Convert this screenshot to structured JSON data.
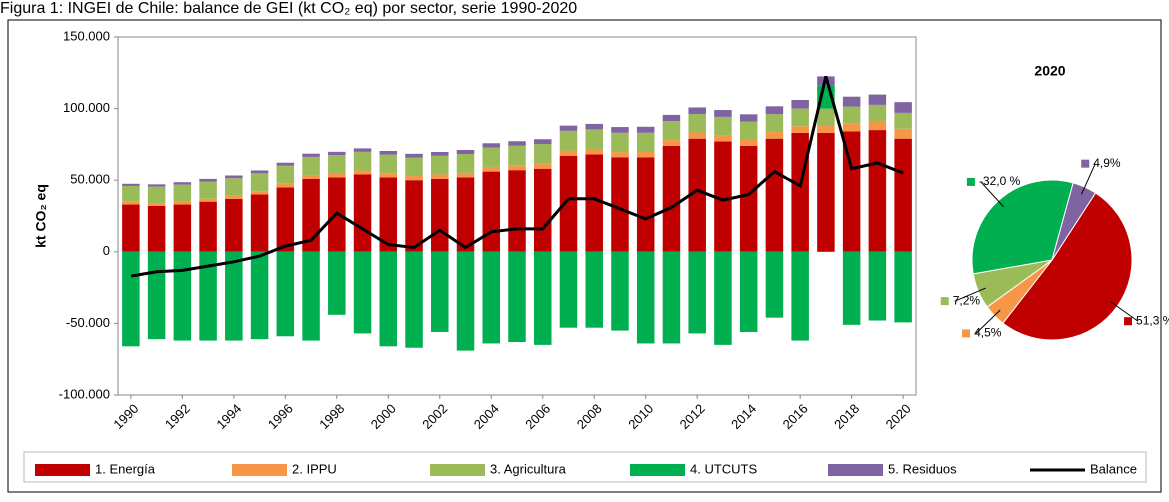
{
  "chart_data": [
    {
      "type": "bar",
      "title": "Figura 1: INGEI de Chile: balance de GEI (kt CO₂ eq) por sector, serie 1990-2020",
      "y_label": "kt CO₂ eq",
      "stacked": true,
      "x": [
        1990,
        1991,
        1992,
        1993,
        1994,
        1995,
        1996,
        1997,
        1998,
        1999,
        2000,
        2001,
        2002,
        2003,
        2004,
        2005,
        2006,
        2007,
        2008,
        2009,
        2010,
        2011,
        2012,
        2013,
        2014,
        2015,
        2016,
        2017,
        2018,
        2019,
        2020
      ],
      "xlim": [
        1989.5,
        2020.5
      ],
      "xticks": [
        1990,
        1992,
        1994,
        1996,
        1998,
        2000,
        2002,
        2004,
        2006,
        2008,
        2010,
        2012,
        2014,
        2016,
        2018,
        2020
      ],
      "ylim": [
        -100000,
        150000
      ],
      "yticks": [
        {
          "value": -100000,
          "label": "-100.000"
        },
        {
          "value": -50000,
          "label": "-50.000"
        },
        0,
        {
          "value": 50000,
          "label": "50.000"
        },
        {
          "value": 100000,
          "label": "100.000"
        },
        {
          "value": 150000,
          "label": "150.000"
        }
      ],
      "grid": false,
      "series": [
        {
          "name": "1. Energía",
          "color": "#c00000",
          "type": "bar",
          "values": [
            33000,
            32000,
            33000,
            35000,
            37000,
            40000,
            45000,
            51000,
            52000,
            54000,
            52000,
            50000,
            51000,
            52000,
            56000,
            57000,
            58000,
            67000,
            68000,
            66000,
            66000,
            74000,
            79000,
            77000,
            74000,
            79000,
            83000,
            83000,
            84000,
            85000,
            79000
          ]
        },
        {
          "name": "2. IPPU",
          "color": "#f79646",
          "type": "bar",
          "values": [
            2000,
            2000,
            2100,
            2100,
            2200,
            2300,
            2500,
            2600,
            2700,
            2800,
            2900,
            2900,
            3000,
            3100,
            3300,
            3400,
            3500,
            3700,
            3800,
            3600,
            3700,
            4000,
            4300,
            4500,
            4400,
            4600,
            4700,
            4800,
            5500,
            6000,
            6900
          ]
        },
        {
          "name": "3. Agricultura",
          "color": "#9bbb59",
          "type": "bar",
          "values": [
            11000,
            11500,
            11800,
            12000,
            12200,
            12500,
            12600,
            12700,
            12800,
            13000,
            13000,
            12900,
            13000,
            13200,
            13500,
            13600,
            13700,
            13800,
            13700,
            13500,
            13400,
            13200,
            12900,
            12700,
            12600,
            12500,
            12300,
            12200,
            11900,
            11600,
            11100
          ]
        },
        {
          "name": "4. UTCUTS",
          "color": "#00b050",
          "type": "bar",
          "values": [
            -66000,
            -61000,
            -62000,
            -62000,
            -62000,
            -61000,
            -59000,
            -62000,
            -44000,
            -57000,
            -66000,
            -67000,
            -56000,
            -69000,
            -64000,
            -63000,
            -65000,
            -53000,
            -53000,
            -55000,
            -64000,
            -64000,
            -57000,
            -65000,
            -56000,
            -46000,
            -62000,
            16000,
            -51000,
            -48000,
            -49300
          ]
        },
        {
          "name": "5. Residuos",
          "color": "#8064a2",
          "type": "bar",
          "values": [
            1500,
            1600,
            1700,
            1800,
            1900,
            2000,
            2100,
            2200,
            2300,
            2400,
            2500,
            2600,
            2700,
            2800,
            3000,
            3200,
            3400,
            3600,
            3800,
            4000,
            4200,
            4400,
            4600,
            4800,
            5000,
            5500,
            6000,
            6500,
            6900,
            7200,
            7500
          ]
        },
        {
          "name": "Balance",
          "color": "#000000",
          "type": "line",
          "values": [
            -17000,
            -14000,
            -13000,
            -10000,
            -7000,
            -3000,
            4000,
            8000,
            27000,
            16000,
            5000,
            3000,
            15000,
            3000,
            14000,
            16000,
            16000,
            37000,
            37000,
            30000,
            23000,
            31000,
            43000,
            36000,
            40000,
            56000,
            46000,
            122500,
            58000,
            62000,
            55000
          ]
        }
      ]
    },
    {
      "type": "pie",
      "title": "2020",
      "values": [
        51.3,
        4.5,
        7.2,
        -32.0,
        4.9
      ],
      "value_labels": [
        "51,3 %",
        "4,5%",
        "7,2%",
        "-32,0 %",
        "4,9%"
      ],
      "colors": [
        "#c00000",
        "#f79646",
        "#9bbb59",
        "#00b050",
        "#8064a2"
      ]
    }
  ]
}
